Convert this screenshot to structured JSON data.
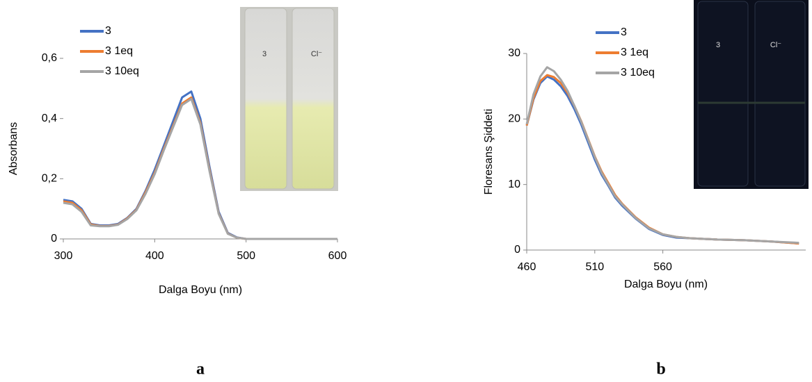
{
  "chart_data": [
    {
      "type": "line",
      "ylabel": "Absorbans",
      "xlabel": "Dalga Boyu (nm)",
      "panel_label": "a",
      "x": [
        300,
        310,
        320,
        330,
        340,
        350,
        360,
        370,
        380,
        390,
        400,
        410,
        420,
        430,
        440,
        450,
        460,
        470,
        480,
        490,
        500,
        510,
        520,
        530,
        540,
        550,
        560,
        570,
        580,
        590,
        600
      ],
      "series": [
        {
          "name": "3",
          "color": "#4472c4",
          "values": [
            0.13,
            0.125,
            0.1,
            0.05,
            0.045,
            0.045,
            0.05,
            0.07,
            0.1,
            0.16,
            0.23,
            0.31,
            0.39,
            0.47,
            0.49,
            0.4,
            0.24,
            0.09,
            0.02,
            0.005,
            0,
            0,
            0,
            0,
            0,
            0,
            0,
            0,
            0,
            0,
            0
          ]
        },
        {
          "name": "3 1eq",
          "color": "#ed7d31",
          "values": [
            0.125,
            0.12,
            0.095,
            0.048,
            0.043,
            0.043,
            0.048,
            0.068,
            0.097,
            0.155,
            0.22,
            0.3,
            0.375,
            0.45,
            0.47,
            0.385,
            0.23,
            0.085,
            0.018,
            0.004,
            0,
            0,
            0,
            0,
            0,
            0,
            0,
            0,
            0,
            0,
            0
          ]
        },
        {
          "name": "3 10eq",
          "color": "#a5a5a5",
          "values": [
            0.12,
            0.115,
            0.09,
            0.045,
            0.042,
            0.042,
            0.047,
            0.066,
            0.095,
            0.15,
            0.215,
            0.295,
            0.37,
            0.445,
            0.465,
            0.38,
            0.225,
            0.083,
            0.017,
            0.004,
            0,
            0,
            0,
            0,
            0,
            0,
            0,
            0,
            0,
            0,
            0
          ]
        }
      ],
      "xlim": [
        300,
        600
      ],
      "xticks": [
        300,
        400,
        500,
        600
      ],
      "ylim": [
        0,
        0.6
      ],
      "yticks": [
        0,
        {
          "value": 0.2,
          "label": "0,2"
        },
        {
          "value": 0.4,
          "label": "0,4"
        },
        {
          "value": 0.6,
          "label": "0,6"
        }
      ],
      "y_axis_line": false,
      "inset_labels": [
        "3",
        "Cl⁻"
      ]
    },
    {
      "type": "line",
      "ylabel": "Floresans Şiddeti",
      "xlabel": "Dalga Boyu (nm)",
      "panel_label": "b",
      "x": [
        460,
        465,
        470,
        475,
        480,
        485,
        490,
        495,
        500,
        505,
        510,
        515,
        520,
        525,
        530,
        540,
        550,
        560,
        570,
        580,
        600,
        620,
        640,
        660
      ],
      "series": [
        {
          "name": "3",
          "color": "#4472c4",
          "values": [
            19,
            23,
            25.5,
            26.5,
            26,
            25,
            23.5,
            21.5,
            19.2,
            16.5,
            13.8,
            11.5,
            9.8,
            8,
            6.8,
            4.8,
            3.2,
            2.3,
            1.9,
            1.8,
            1.6,
            1.5,
            1.3,
            1.0
          ]
        },
        {
          "name": "3 1eq",
          "color": "#ed7d31",
          "values": [
            19,
            23.2,
            25.8,
            26.7,
            26.4,
            25.5,
            24,
            22,
            19.7,
            17,
            14.3,
            12,
            10.2,
            8.4,
            7.1,
            5,
            3.4,
            2.4,
            2,
            1.8,
            1.6,
            1.5,
            1.3,
            1.0
          ]
        },
        {
          "name": "3 10eq",
          "color": "#a5a5a5",
          "values": [
            19.2,
            23.8,
            26.5,
            27.9,
            27.3,
            26,
            24.3,
            22,
            19.6,
            16.9,
            14.2,
            11.8,
            10,
            8.2,
            7,
            4.9,
            3.3,
            2.4,
            2,
            1.8,
            1.6,
            1.5,
            1.3,
            1.1
          ]
        }
      ],
      "xlim": [
        460,
        665
      ],
      "xticks": [
        460,
        510,
        560
      ],
      "ylim": [
        0,
        30
      ],
      "yticks": [
        0,
        10,
        20,
        30
      ],
      "y_axis_line": true,
      "inset_labels": [
        "3",
        "Cl⁻"
      ]
    }
  ]
}
